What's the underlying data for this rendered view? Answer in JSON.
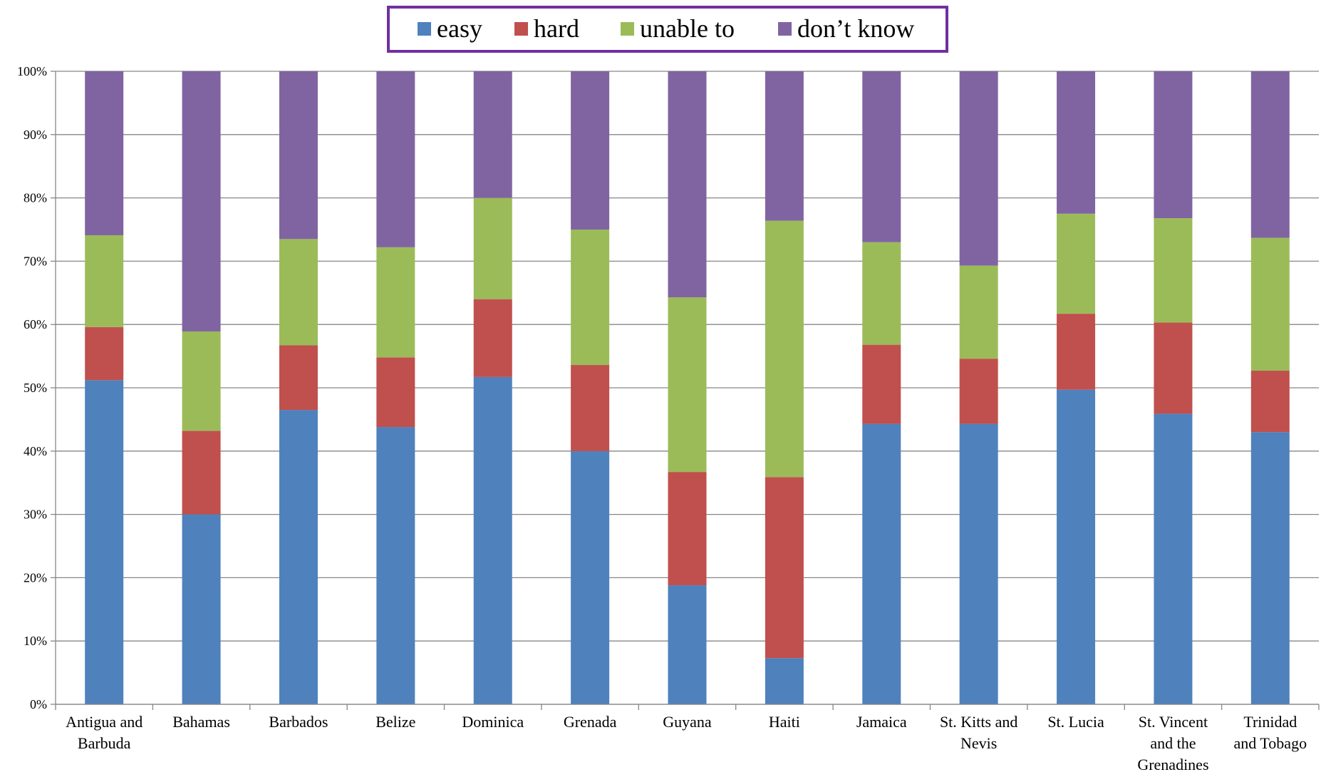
{
  "chart_data": {
    "type": "bar",
    "stacked": true,
    "percent": true,
    "title": "",
    "xlabel": "",
    "ylabel": "",
    "ylim": [
      0,
      100
    ],
    "y_ticks": [
      "0%",
      "10%",
      "20%",
      "30%",
      "40%",
      "50%",
      "60%",
      "70%",
      "80%",
      "90%",
      "100%"
    ],
    "grid": true,
    "legend_position": "top-center",
    "categories": [
      "Antigua and Barbuda",
      "Bahamas",
      "Barbados",
      "Belize",
      "Dominica",
      "Grenada",
      "Guyana",
      "Haiti",
      "Jamaica",
      "St. Kitts and Nevis",
      "St. Lucia",
      "St. Vincent and the Grenadines",
      "Trinidad and Tobago"
    ],
    "category_label_lines": [
      [
        "Antigua and",
        "Barbuda"
      ],
      [
        "Bahamas"
      ],
      [
        "Barbados"
      ],
      [
        "Belize"
      ],
      [
        "Dominica"
      ],
      [
        "Grenada"
      ],
      [
        "Guyana"
      ],
      [
        "Haiti"
      ],
      [
        "Jamaica"
      ],
      [
        "St. Kitts and",
        "Nevis"
      ],
      [
        "St. Lucia"
      ],
      [
        "St. Vincent",
        "and the",
        "Grenadines"
      ],
      [
        "Trinidad",
        "and Tobago"
      ]
    ],
    "series": [
      {
        "name": "easy",
        "color": "#4F81BD",
        "values": [
          51.2,
          30.0,
          46.5,
          43.8,
          51.7,
          40.0,
          18.8,
          7.3,
          44.3,
          44.3,
          49.7,
          45.9,
          43.0
        ]
      },
      {
        "name": "hard",
        "color": "#C0504D",
        "values": [
          8.4,
          13.2,
          10.2,
          11.0,
          12.3,
          13.6,
          17.9,
          28.6,
          12.5,
          10.3,
          12.0,
          14.4,
          9.7
        ]
      },
      {
        "name": "unable to",
        "color": "#9BBB59",
        "values": [
          14.5,
          15.7,
          16.8,
          17.4,
          16.0,
          21.4,
          27.6,
          40.5,
          16.2,
          14.7,
          15.8,
          16.5,
          21.0
        ]
      },
      {
        "name": "don’t know",
        "color": "#8064A2",
        "values": [
          25.9,
          41.1,
          26.5,
          27.8,
          20.0,
          25.0,
          35.7,
          23.6,
          27.0,
          30.7,
          22.5,
          23.2,
          26.3
        ]
      }
    ]
  },
  "colors": {
    "legend_border": "#7030A0",
    "gridline": "#878787",
    "axis": "#878787",
    "text": "#000000"
  }
}
